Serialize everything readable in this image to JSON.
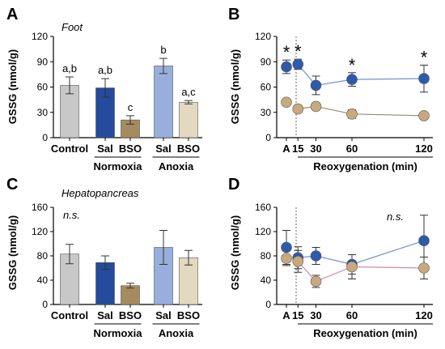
{
  "chart_data": [
    {
      "panel": "A",
      "type": "bar",
      "tissue": "Foot",
      "ylabel": "GSSG (nmol/g)",
      "ylim": [
        0,
        120
      ],
      "yticks": [
        "0",
        "30",
        "60",
        "90",
        "120"
      ],
      "categories": [
        "Control",
        "Sal",
        "BSO",
        "Sal",
        "BSO"
      ],
      "groups": [
        {
          "label": "Normoxia",
          "span": [
            1,
            2
          ]
        },
        {
          "label": "Anoxia",
          "span": [
            3,
            4
          ]
        }
      ],
      "values": [
        62,
        59,
        21,
        85,
        42
      ],
      "errors": [
        10,
        11,
        5,
        9,
        2
      ],
      "annotations": [
        "a,b",
        "a,b",
        "c",
        "b",
        "a,c"
      ],
      "colors": [
        "#c8c8c8",
        "#244b9c",
        "#a58b5e",
        "#98aedc",
        "#e3d8c0"
      ]
    },
    {
      "panel": "B",
      "type": "line",
      "ylabel": "GSSG (nmol/g)",
      "ylim": [
        0,
        120
      ],
      "yticks": [
        "0",
        "30",
        "60",
        "90",
        "120"
      ],
      "x": [
        "A",
        15,
        30,
        60,
        120
      ],
      "x_tick_labels": [
        "A",
        "15",
        "30",
        "60",
        "120"
      ],
      "xlabel": "Reoxygenation (min)",
      "series": [
        {
          "color": "#2e5aac",
          "line": "#6f92d4",
          "values": [
            84,
            87,
            62,
            69,
            70
          ],
          "errors": [
            8,
            6,
            11,
            8,
            16
          ]
        },
        {
          "color": "#c8a97e",
          "line": "#9c8a6c",
          "values": [
            42,
            34,
            37,
            28,
            26
          ],
          "errors": [
            3,
            3,
            4,
            5,
            3
          ]
        }
      ],
      "significance": [
        0,
        1,
        3,
        4
      ],
      "significance_symbol": "*"
    },
    {
      "panel": "C",
      "type": "bar",
      "tissue": "Hepatopancreas",
      "ylabel": "GSSG (nmol/g)",
      "ylim": [
        0,
        160
      ],
      "yticks": [
        "0",
        "40",
        "80",
        "120",
        "160"
      ],
      "categories": [
        "Control",
        "Sal",
        "BSO",
        "Sal",
        "BSO"
      ],
      "groups": [
        {
          "label": "Normoxia",
          "span": [
            1,
            2
          ]
        },
        {
          "label": "Anoxia",
          "span": [
            3,
            4
          ]
        }
      ],
      "values": [
        83,
        69,
        31,
        94,
        77
      ],
      "errors": [
        16,
        11,
        4,
        28,
        12
      ],
      "note": "n.s.",
      "colors": [
        "#c8c8c8",
        "#244b9c",
        "#a58b5e",
        "#98aedc",
        "#e3d8c0"
      ]
    },
    {
      "panel": "D",
      "type": "line",
      "ylabel": "GSSG (nmol/g)",
      "ylim": [
        0,
        160
      ],
      "yticks": [
        "0",
        "40",
        "80",
        "120",
        "160"
      ],
      "x": [
        "A",
        15,
        30,
        60,
        120
      ],
      "x_tick_labels": [
        "A",
        "15",
        "30",
        "60",
        "120"
      ],
      "xlabel": "Reoxygenation (min)",
      "series": [
        {
          "color": "#2e5aac",
          "line": "#6f92d4",
          "values": [
            94,
            77,
            80,
            66,
            105
          ],
          "errors": [
            28,
            18,
            14,
            16,
            42
          ]
        },
        {
          "color": "#c8a97e",
          "line": "#d987a8",
          "values": [
            76,
            71,
            38,
            62,
            60
          ],
          "errors": [
            12,
            18,
            10,
            20,
            18
          ]
        }
      ],
      "note": "n.s."
    }
  ]
}
